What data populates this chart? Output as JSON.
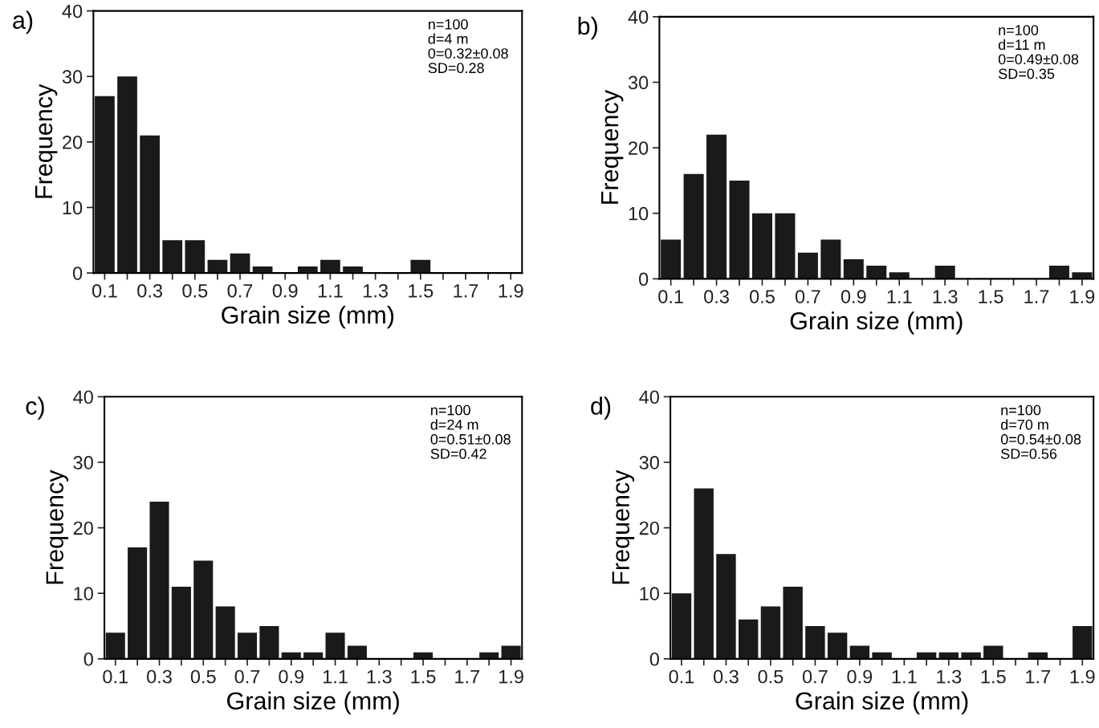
{
  "chart_data": [
    {
      "type": "histogram",
      "title": "a)",
      "xlabel": "Grain size (mm)",
      "ylabel": "Frequency",
      "annotations": [
        "n=100\nd=4 m\n0=0.32±0.08\nSD=0.28"
      ],
      "bins": [
        0.05,
        0.15,
        0.25,
        0.35,
        0.45,
        0.55,
        0.65,
        0.75,
        0.85,
        0.95,
        1.05,
        1.15,
        1.25,
        1.35,
        1.45,
        1.55,
        1.65,
        1.75,
        1.85,
        1.95
      ],
      "values": [
        27,
        30,
        21,
        5,
        5,
        2,
        3,
        1,
        0,
        1,
        2,
        1,
        0,
        0,
        2,
        0,
        0,
        0,
        0
      ],
      "color": "#1a1a1a",
      "xlim": [
        0.05,
        1.95
      ],
      "ylim": [
        0,
        40
      ],
      "yticks": [
        0,
        10,
        20,
        30,
        40
      ],
      "xticks": [
        0.1,
        {
          "value": 0.2,
          "label": null
        },
        0.3,
        {
          "value": 0.4,
          "label": null
        },
        0.5,
        {
          "value": 0.6,
          "label": null
        },
        0.7,
        {
          "value": 0.8,
          "label": null
        },
        0.9,
        {
          "value": 1.0,
          "label": null
        },
        1.1,
        {
          "value": 1.2,
          "label": null
        },
        1.3,
        {
          "value": 1.4,
          "label": null
        },
        1.5,
        {
          "value": 1.6,
          "label": null
        },
        1.7,
        {
          "value": 1.8,
          "label": null
        },
        1.9
      ],
      "grid": false
    },
    {
      "type": "histogram",
      "title": "b)",
      "xlabel": "Grain size (mm)",
      "ylabel": "Frequency",
      "annotations": [
        "n=100\nd=11 m\n0=0.49±0.08\nSD=0.35"
      ],
      "bins": [
        0.05,
        0.15,
        0.25,
        0.35,
        0.45,
        0.55,
        0.65,
        0.75,
        0.85,
        0.95,
        1.05,
        1.15,
        1.25,
        1.35,
        1.45,
        1.55,
        1.65,
        1.75,
        1.85,
        1.95
      ],
      "values": [
        6,
        16,
        22,
        15,
        10,
        10,
        4,
        6,
        3,
        2,
        1,
        0,
        2,
        0,
        0,
        0,
        0,
        2,
        1
      ],
      "color": "#1a1a1a",
      "xlim": [
        0.05,
        1.95
      ],
      "ylim": [
        0,
        40
      ],
      "yticks": [
        0,
        10,
        20,
        30,
        40
      ],
      "xticks": [
        0.1,
        {
          "value": 0.2,
          "label": null
        },
        0.3,
        {
          "value": 0.4,
          "label": null
        },
        0.5,
        {
          "value": 0.6,
          "label": null
        },
        0.7,
        {
          "value": 0.8,
          "label": null
        },
        0.9,
        {
          "value": 1.0,
          "label": null
        },
        1.1,
        {
          "value": 1.2,
          "label": null
        },
        1.3,
        {
          "value": 1.4,
          "label": null
        },
        1.5,
        {
          "value": 1.6,
          "label": null
        },
        1.7,
        {
          "value": 1.8,
          "label": null
        },
        1.9
      ],
      "grid": false
    },
    {
      "type": "histogram",
      "title": "c)",
      "xlabel": "Grain size (mm)",
      "ylabel": "Frequency",
      "annotations": [
        "n=100\nd=24 m\n0=0.51±0.08\nSD=0.42"
      ],
      "bins": [
        0.05,
        0.15,
        0.25,
        0.35,
        0.45,
        0.55,
        0.65,
        0.75,
        0.85,
        0.95,
        1.05,
        1.15,
        1.25,
        1.35,
        1.45,
        1.55,
        1.65,
        1.75,
        1.85,
        1.95
      ],
      "values": [
        4,
        17,
        24,
        11,
        15,
        8,
        4,
        5,
        1,
        1,
        4,
        2,
        0,
        0,
        1,
        0,
        0,
        1,
        2
      ],
      "color": "#1a1a1a",
      "xlim": [
        0.05,
        1.95
      ],
      "ylim": [
        0,
        40
      ],
      "yticks": [
        0,
        10,
        20,
        30,
        40
      ],
      "xticks": [
        0.1,
        {
          "value": 0.2,
          "label": null
        },
        0.3,
        {
          "value": 0.4,
          "label": null
        },
        0.5,
        {
          "value": 0.6,
          "label": null
        },
        0.7,
        {
          "value": 0.8,
          "label": null
        },
        0.9,
        {
          "value": 1.0,
          "label": null
        },
        1.1,
        {
          "value": 1.2,
          "label": null
        },
        1.3,
        {
          "value": 1.4,
          "label": null
        },
        1.5,
        {
          "value": 1.6,
          "label": null
        },
        1.7,
        {
          "value": 1.8,
          "label": null
        },
        1.9
      ],
      "grid": false
    },
    {
      "type": "histogram",
      "title": "d)",
      "xlabel": "Grain size (mm)",
      "ylabel": "Frequency",
      "annotations": [
        "n=100\nd=70 m\n0=0.54±0.08\nSD=0.56"
      ],
      "bins": [
        0.05,
        0.15,
        0.25,
        0.35,
        0.45,
        0.55,
        0.65,
        0.75,
        0.85,
        0.95,
        1.05,
        1.15,
        1.25,
        1.35,
        1.45,
        1.55,
        1.65,
        1.75,
        1.85,
        1.95
      ],
      "values": [
        10,
        26,
        16,
        6,
        8,
        11,
        5,
        4,
        2,
        1,
        0,
        1,
        1,
        1,
        2,
        0,
        1,
        0,
        5
      ],
      "color": "#1a1a1a",
      "xlim": [
        0.05,
        1.95
      ],
      "ylim": [
        0,
        40
      ],
      "yticks": [
        0,
        10,
        20,
        30,
        40
      ],
      "xticks": [
        0.1,
        {
          "value": 0.2,
          "label": null
        },
        0.3,
        {
          "value": 0.4,
          "label": null
        },
        0.5,
        {
          "value": 0.6,
          "label": null
        },
        0.7,
        {
          "value": 0.8,
          "label": null
        },
        0.9,
        {
          "value": 1.0,
          "label": null
        },
        1.1,
        {
          "value": 1.2,
          "label": null
        },
        1.3,
        {
          "value": 1.4,
          "label": null
        },
        1.5,
        {
          "value": 1.6,
          "label": null
        },
        1.7,
        {
          "value": 1.8,
          "label": null
        },
        1.9
      ],
      "grid": false
    }
  ]
}
